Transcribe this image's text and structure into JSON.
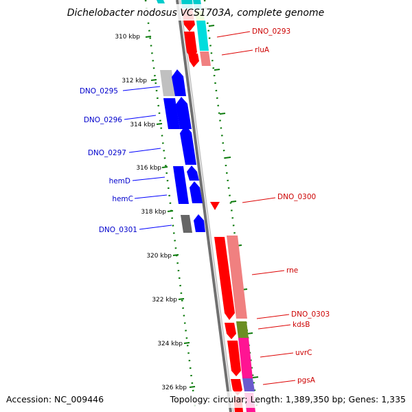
{
  "title": "Dichelobacter nodosus VCS1703A, complete genome",
  "footer": {
    "accession": "Accession: NC_009446",
    "summary": "Topology: circular; Length: 1,389,350 bp; Genes: 1,335"
  },
  "colors": {
    "forward_strand": "#0000ff",
    "reverse_strand": "#ff0000",
    "backbone": "#808080",
    "tick": "#0a7a0a"
  },
  "tick_labels": [
    "310 kbp",
    "312 kbp",
    "314 kbp",
    "316 kbp",
    "318 kbp",
    "320 kbp",
    "322 kbp",
    "324 kbp",
    "326 kbp"
  ],
  "left_labels": [
    "DNO_0295",
    "DNO_0296",
    "DNO_0297",
    "hemD",
    "hemC",
    "DNO_0301"
  ],
  "right_labels": [
    "DNO_0293",
    "rluA",
    "DNO_0300",
    "rne",
    "DNO_0303",
    "kdsB",
    "uvrC",
    "pgsA"
  ]
}
